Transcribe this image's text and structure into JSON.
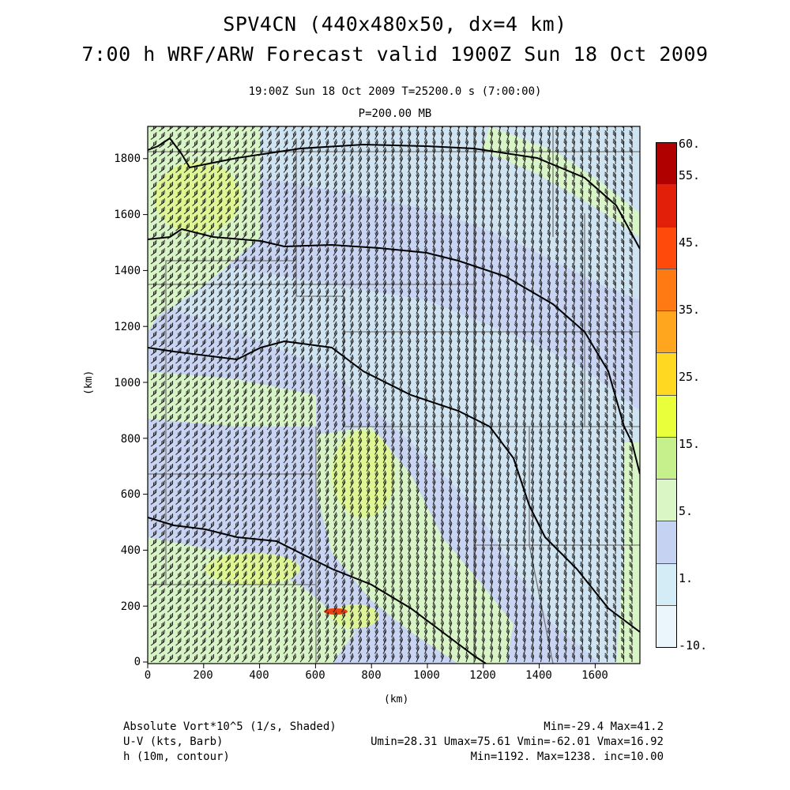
{
  "title": {
    "line1": "SPV4CN (440x480x50, dx=4 km)",
    "line2": "7:00 h WRF/ARW Forecast valid 1900Z Sun 18 Oct 2009"
  },
  "subtitle": {
    "line1": "19:00Z Sun 18 Oct 2009     T=25200.0 s (7:00:00)",
    "line2": "P=200.00 MB"
  },
  "axes": {
    "x_label": "(km)",
    "y_label": "(km)",
    "x_ticks": [
      "0",
      "200",
      "400",
      "600",
      "800",
      "1000",
      "1200",
      "1400",
      "1600"
    ],
    "y_ticks": [
      "0",
      "200",
      "400",
      "600",
      "800",
      "1000",
      "1200",
      "1400",
      "1600",
      "1800"
    ]
  },
  "colorbar": {
    "labels": [
      "60.",
      "55.",
      "45.",
      "35.",
      "25.",
      "15.",
      "5.",
      "1.",
      "-10."
    ],
    "colors": [
      "#eaf6fb",
      "#d3ecf5",
      "#c6d2f2",
      "#d9f6c4",
      "#c6f08c",
      "#e9ff3c",
      "#ffd821",
      "#ffa51e",
      "#ff7a12",
      "#ff4a0c",
      "#e2200a",
      "#b10000"
    ]
  },
  "footer": {
    "field1": "Absolute Vort*10^5 (1/s, Shaded)",
    "field2": "U-V (kts, Barb)",
    "field3": "h (10m, contour)",
    "stats1": "Min=-29.4 Max=41.2",
    "stats2": "Umin=28.31 Umax=75.61 Vmin=-62.01 Vmax=16.92",
    "stats3": "Min=1192. Max=1238. inc=10.00"
  },
  "map_colors": {
    "base": "#cfe3f1",
    "lavender": "#c6d2f2",
    "green": "#d9f6c4",
    "yellowgreen": "#dff78e",
    "red": "#e8400e",
    "barb": "#111111",
    "state_lines": "#777777",
    "contour": "#000000"
  }
}
